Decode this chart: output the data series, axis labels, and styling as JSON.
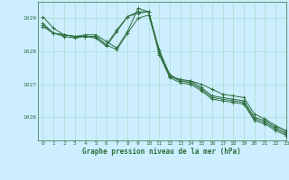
{
  "title": "Graphe pression niveau de la mer (hPa)",
  "background_color": "#cceeff",
  "plot_bg_color": "#cceeff",
  "grid_color": "#aaddcc",
  "line_color": "#2d6e3e",
  "xlim": [
    -0.5,
    23
  ],
  "ylim": [
    1025.3,
    1029.5
  ],
  "yticks": [
    1026,
    1027,
    1028,
    1029
  ],
  "xticks": [
    0,
    1,
    2,
    3,
    4,
    5,
    6,
    7,
    8,
    9,
    10,
    11,
    12,
    13,
    14,
    15,
    16,
    17,
    18,
    19,
    20,
    21,
    22,
    23
  ],
  "series": [
    [
      1029.05,
      1028.7,
      1028.5,
      1028.45,
      1028.5,
      1028.5,
      1028.3,
      1028.1,
      1028.6,
      1029.3,
      1029.2,
      1028.05,
      1027.25,
      1027.15,
      1027.1,
      1027.0,
      1026.85,
      1026.7,
      1026.65,
      1026.6,
      1026.1,
      1025.95,
      1025.75,
      1025.6
    ],
    [
      1028.75,
      1028.55,
      1028.5,
      1028.45,
      1028.45,
      1028.45,
      1028.2,
      1028.05,
      1028.55,
      1029.0,
      1029.1,
      1028.0,
      1027.3,
      1027.1,
      1027.1,
      1026.9,
      1026.65,
      1026.6,
      1026.55,
      1026.5,
      1026.0,
      1025.9,
      1025.7,
      1025.55
    ],
    [
      1028.8,
      1028.55,
      1028.5,
      1028.45,
      1028.45,
      1028.45,
      1028.2,
      1028.65,
      1029.05,
      1029.2,
      1029.2,
      1027.95,
      1027.25,
      1027.1,
      1027.05,
      1026.85,
      1026.6,
      1026.55,
      1026.5,
      1026.45,
      1025.95,
      1025.85,
      1025.65,
      1025.5
    ],
    [
      1028.85,
      1028.55,
      1028.45,
      1028.4,
      1028.45,
      1028.4,
      1028.15,
      1028.6,
      1029.05,
      1029.15,
      1029.2,
      1027.9,
      1027.2,
      1027.05,
      1027.0,
      1026.8,
      1026.55,
      1026.5,
      1026.45,
      1026.4,
      1025.9,
      1025.8,
      1025.6,
      1025.45
    ]
  ]
}
